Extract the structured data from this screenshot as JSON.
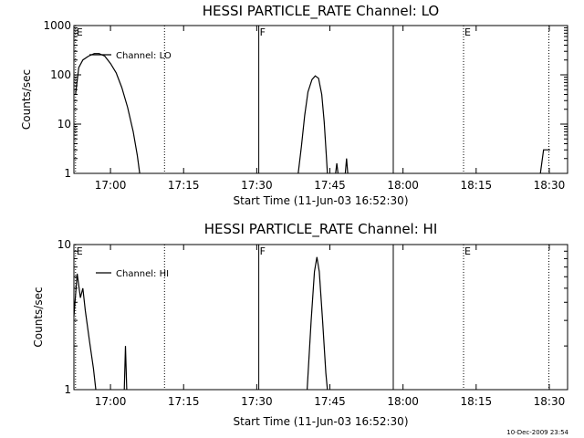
{
  "footer_timestamp": "10-Dec-2009 23:54",
  "chart_data": [
    {
      "type": "line",
      "title": "HESSI PARTICLE_RATE Channel: LO",
      "xlabel": "Start Time (11-Jun-03 16:52:30)",
      "ylabel": "Counts/sec",
      "yscale": "log",
      "ylim": [
        1,
        1000
      ],
      "xlim": [
        "16:52:30",
        "18:33:45"
      ],
      "xticks": [
        "17:00",
        "17:15",
        "17:30",
        "17:45",
        "18:00",
        "18:15",
        "18:30"
      ],
      "yticks": [
        "1",
        "10",
        "100",
        "1000"
      ],
      "legend": "Channel: LO",
      "legend_position": "top-left",
      "grid": false,
      "markers": [
        {
          "time": "16:52:50",
          "label": "E",
          "style": "dotted"
        },
        {
          "time": "17:11:05",
          "label": "",
          "style": "dotted"
        },
        {
          "time": "17:30:25",
          "label": "F",
          "style": "solid"
        },
        {
          "time": "17:58:00",
          "label": "",
          "style": "solid"
        },
        {
          "time": "18:12:25",
          "label": "E",
          "style": "dotted"
        },
        {
          "time": "18:29:55",
          "label": "",
          "style": "dotted"
        }
      ],
      "series": [
        {
          "name": "Channel: LO",
          "segments": [
            [
              [
                "16:52:50",
                40
              ],
              [
                "16:53:30",
                140
              ],
              [
                "16:54:20",
                200
              ],
              [
                "16:55:30",
                240
              ],
              [
                "16:56:40",
                270
              ],
              [
                "16:57:40",
                270
              ],
              [
                "16:58:50",
                240
              ],
              [
                "17:00:00",
                170
              ],
              [
                "17:01:10",
                110
              ],
              [
                "17:02:20",
                55
              ],
              [
                "17:03:30",
                22
              ],
              [
                "17:04:40",
                7
              ],
              [
                "17:05:30",
                2.3
              ],
              [
                "17:06:00",
                1
              ]
            ],
            [
              [
                "17:38:30",
                1
              ],
              [
                "17:39:10",
                3.5
              ],
              [
                "17:39:50",
                15
              ],
              [
                "17:40:30",
                45
              ],
              [
                "17:41:20",
                80
              ],
              [
                "17:42:00",
                95
              ],
              [
                "17:42:40",
                85
              ],
              [
                "17:43:20",
                40
              ],
              [
                "17:43:50",
                11
              ],
              [
                "17:44:15",
                2.5
              ],
              [
                "17:44:30",
                1
              ]
            ],
            [
              [
                "17:46:10",
                1
              ],
              [
                "17:46:25",
                1.6
              ],
              [
                "17:46:40",
                1
              ]
            ],
            [
              [
                "17:48:10",
                1
              ],
              [
                "17:48:25",
                2
              ],
              [
                "17:48:40",
                1
              ]
            ],
            [
              [
                "18:28:10",
                1
              ],
              [
                "18:28:50",
                3
              ],
              [
                "18:30:10",
                3
              ]
            ]
          ]
        }
      ]
    },
    {
      "type": "line",
      "title": "HESSI PARTICLE_RATE Channel: HI",
      "xlabel": "Start Time (11-Jun-03 16:52:30)",
      "ylabel": "Counts/sec",
      "yscale": "log",
      "ylim": [
        1,
        10
      ],
      "xlim": [
        "16:52:30",
        "18:33:45"
      ],
      "xticks": [
        "17:00",
        "17:15",
        "17:30",
        "17:45",
        "18:00",
        "18:15",
        "18:30"
      ],
      "yticks": [
        "1",
        "10"
      ],
      "legend": "Channel: HI",
      "legend_position": "top-left",
      "grid": false,
      "markers": [
        {
          "time": "16:52:50",
          "label": "E",
          "style": "dotted"
        },
        {
          "time": "17:11:05",
          "label": "",
          "style": "dotted"
        },
        {
          "time": "17:30:25",
          "label": "F",
          "style": "solid"
        },
        {
          "time": "17:58:00",
          "label": "",
          "style": "solid"
        },
        {
          "time": "18:12:25",
          "label": "E",
          "style": "dotted"
        },
        {
          "time": "18:29:55",
          "label": "",
          "style": "dotted"
        }
      ],
      "series": [
        {
          "name": "Channel: HI",
          "segments": [
            [
              [
                "16:52:30",
                3.2
              ],
              [
                "16:53:10",
                6.3
              ],
              [
                "16:53:50",
                4.3
              ],
              [
                "16:54:20",
                5.0
              ],
              [
                "16:54:50",
                3.5
              ],
              [
                "16:55:40",
                2.2
              ],
              [
                "16:56:30",
                1.4
              ],
              [
                "16:57:00",
                1
              ]
            ],
            [
              [
                "17:02:50",
                1
              ],
              [
                "17:03:05",
                2.0
              ],
              [
                "17:03:20",
                1
              ]
            ],
            [
              [
                "17:40:20",
                1
              ],
              [
                "17:41:10",
                3.0
              ],
              [
                "17:41:50",
                6.5
              ],
              [
                "17:42:20",
                8.2
              ],
              [
                "17:42:50",
                6.5
              ],
              [
                "17:43:30",
                3.0
              ],
              [
                "17:44:10",
                1.3
              ],
              [
                "17:44:30",
                1
              ]
            ]
          ]
        }
      ]
    }
  ]
}
